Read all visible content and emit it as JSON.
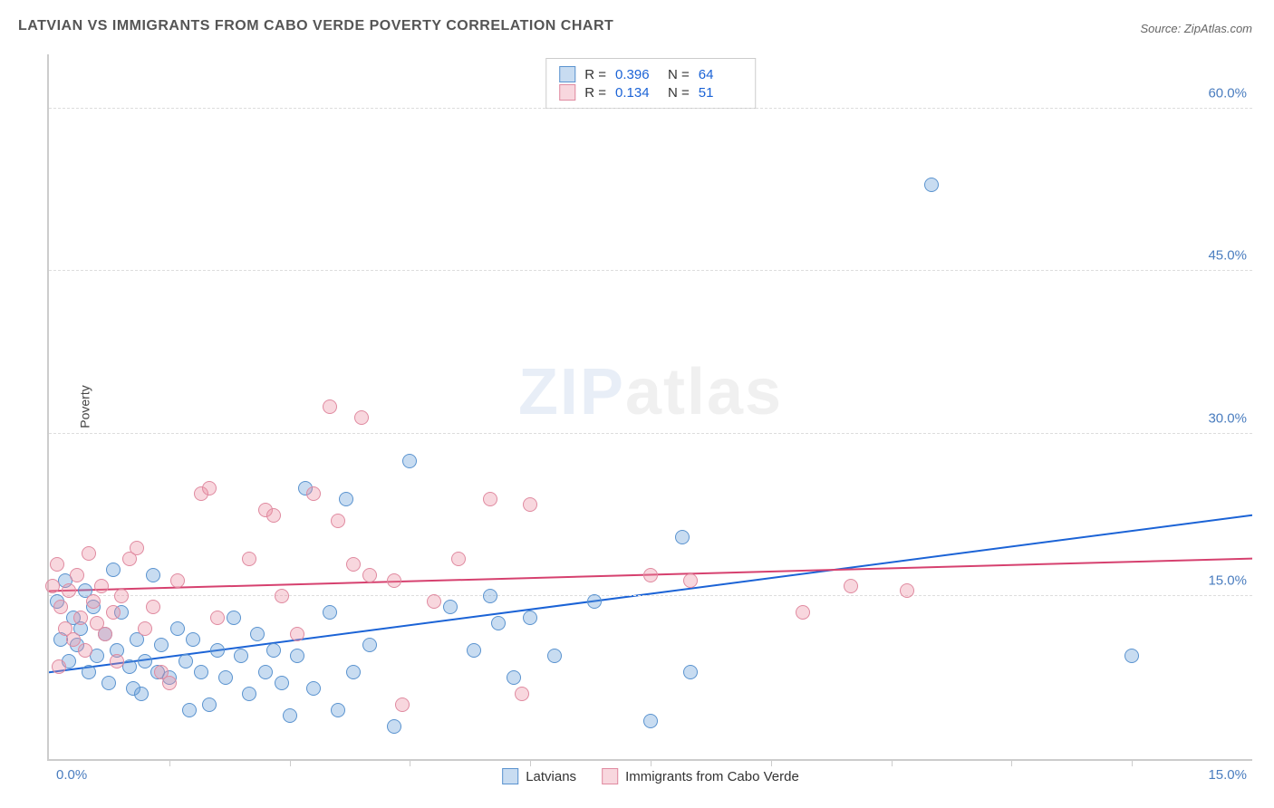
{
  "title": "LATVIAN VS IMMIGRANTS FROM CABO VERDE POVERTY CORRELATION CHART",
  "source": "Source: ZipAtlas.com",
  "ylabel": "Poverty",
  "watermark": {
    "pre": "ZIP",
    "post": "atlas"
  },
  "chart": {
    "type": "scatter",
    "xlim": [
      0,
      15
    ],
    "ylim": [
      0,
      65
    ],
    "x_tick_labels": {
      "left": "0.0%",
      "right": "15.0%"
    },
    "x_ticks": [
      1.5,
      3.0,
      4.5,
      6.0,
      7.5,
      9.0,
      10.5,
      12.0,
      13.5
    ],
    "y_ticks": [
      15.0,
      30.0,
      45.0,
      60.0
    ],
    "y_tick_labels": [
      "15.0%",
      "30.0%",
      "45.0%",
      "60.0%"
    ],
    "grid_color": "#dddddd",
    "background_color": "#ffffff",
    "marker_radius": 8,
    "series": [
      {
        "name": "Latvians",
        "fill": "rgba(96,155,214,0.35)",
        "stroke": "#5a93cf",
        "R": "0.396",
        "N": "64",
        "trend": {
          "y_at_x0": 8.0,
          "y_at_xmax": 22.5,
          "color": "#1b63d6",
          "width": 2
        },
        "points": [
          [
            0.1,
            14.5
          ],
          [
            0.15,
            11.0
          ],
          [
            0.2,
            16.5
          ],
          [
            0.25,
            9.0
          ],
          [
            0.3,
            13.0
          ],
          [
            0.35,
            10.5
          ],
          [
            0.4,
            12.0
          ],
          [
            0.5,
            8.0
          ],
          [
            0.55,
            14.0
          ],
          [
            0.6,
            9.5
          ],
          [
            0.7,
            11.5
          ],
          [
            0.75,
            7.0
          ],
          [
            0.8,
            17.5
          ],
          [
            0.85,
            10.0
          ],
          [
            0.9,
            13.5
          ],
          [
            1.0,
            8.5
          ],
          [
            1.1,
            11.0
          ],
          [
            1.15,
            6.0
          ],
          [
            1.2,
            9.0
          ],
          [
            1.3,
            17.0
          ],
          [
            1.35,
            8.0
          ],
          [
            1.4,
            10.5
          ],
          [
            1.5,
            7.5
          ],
          [
            1.6,
            12.0
          ],
          [
            1.7,
            9.0
          ],
          [
            1.75,
            4.5
          ],
          [
            1.8,
            11.0
          ],
          [
            1.9,
            8.0
          ],
          [
            2.0,
            5.0
          ],
          [
            2.1,
            10.0
          ],
          [
            2.2,
            7.5
          ],
          [
            2.3,
            13.0
          ],
          [
            2.4,
            9.5
          ],
          [
            2.5,
            6.0
          ],
          [
            2.6,
            11.5
          ],
          [
            2.7,
            8.0
          ],
          [
            2.8,
            10.0
          ],
          [
            2.9,
            7.0
          ],
          [
            3.0,
            4.0
          ],
          [
            3.1,
            9.5
          ],
          [
            3.2,
            25.0
          ],
          [
            3.3,
            6.5
          ],
          [
            3.5,
            13.5
          ],
          [
            3.6,
            4.5
          ],
          [
            3.7,
            24.0
          ],
          [
            3.8,
            8.0
          ],
          [
            4.0,
            10.5
          ],
          [
            4.3,
            3.0
          ],
          [
            4.5,
            27.5
          ],
          [
            5.0,
            14.0
          ],
          [
            5.3,
            10.0
          ],
          [
            5.5,
            15.0
          ],
          [
            5.6,
            12.5
          ],
          [
            5.8,
            7.5
          ],
          [
            6.0,
            13.0
          ],
          [
            6.3,
            9.5
          ],
          [
            6.8,
            14.5
          ],
          [
            7.5,
            3.5
          ],
          [
            7.9,
            20.5
          ],
          [
            8.0,
            8.0
          ],
          [
            11.0,
            53.0
          ],
          [
            13.5,
            9.5
          ],
          [
            0.45,
            15.5
          ],
          [
            1.05,
            6.5
          ]
        ]
      },
      {
        "name": "Immigrants from Cabo Verde",
        "fill": "rgba(235,140,160,0.35)",
        "stroke": "#e08aa0",
        "R": "0.134",
        "N": "51",
        "trend": {
          "y_at_x0": 15.5,
          "y_at_xmax": 18.5,
          "color": "#d6416f",
          "width": 2
        },
        "points": [
          [
            0.05,
            16.0
          ],
          [
            0.1,
            18.0
          ],
          [
            0.15,
            14.0
          ],
          [
            0.2,
            12.0
          ],
          [
            0.25,
            15.5
          ],
          [
            0.3,
            11.0
          ],
          [
            0.35,
            17.0
          ],
          [
            0.4,
            13.0
          ],
          [
            0.45,
            10.0
          ],
          [
            0.5,
            19.0
          ],
          [
            0.55,
            14.5
          ],
          [
            0.6,
            12.5
          ],
          [
            0.65,
            16.0
          ],
          [
            0.7,
            11.5
          ],
          [
            0.8,
            13.5
          ],
          [
            0.85,
            9.0
          ],
          [
            0.9,
            15.0
          ],
          [
            1.0,
            18.5
          ],
          [
            1.1,
            19.5
          ],
          [
            1.2,
            12.0
          ],
          [
            1.3,
            14.0
          ],
          [
            1.4,
            8.0
          ],
          [
            1.5,
            7.0
          ],
          [
            1.6,
            16.5
          ],
          [
            1.9,
            24.5
          ],
          [
            2.0,
            25.0
          ],
          [
            2.1,
            13.0
          ],
          [
            2.5,
            18.5
          ],
          [
            2.7,
            23.0
          ],
          [
            2.8,
            22.5
          ],
          [
            2.9,
            15.0
          ],
          [
            3.1,
            11.5
          ],
          [
            3.3,
            24.5
          ],
          [
            3.5,
            32.5
          ],
          [
            3.6,
            22.0
          ],
          [
            3.8,
            18.0
          ],
          [
            3.9,
            31.5
          ],
          [
            4.0,
            17.0
          ],
          [
            4.3,
            16.5
          ],
          [
            4.4,
            5.0
          ],
          [
            4.8,
            14.5
          ],
          [
            5.1,
            18.5
          ],
          [
            5.5,
            24.0
          ],
          [
            5.9,
            6.0
          ],
          [
            6.0,
            23.5
          ],
          [
            7.5,
            17.0
          ],
          [
            8.0,
            16.5
          ],
          [
            9.4,
            13.5
          ],
          [
            10.0,
            16.0
          ],
          [
            10.7,
            15.5
          ],
          [
            0.12,
            8.5
          ]
        ]
      }
    ]
  }
}
